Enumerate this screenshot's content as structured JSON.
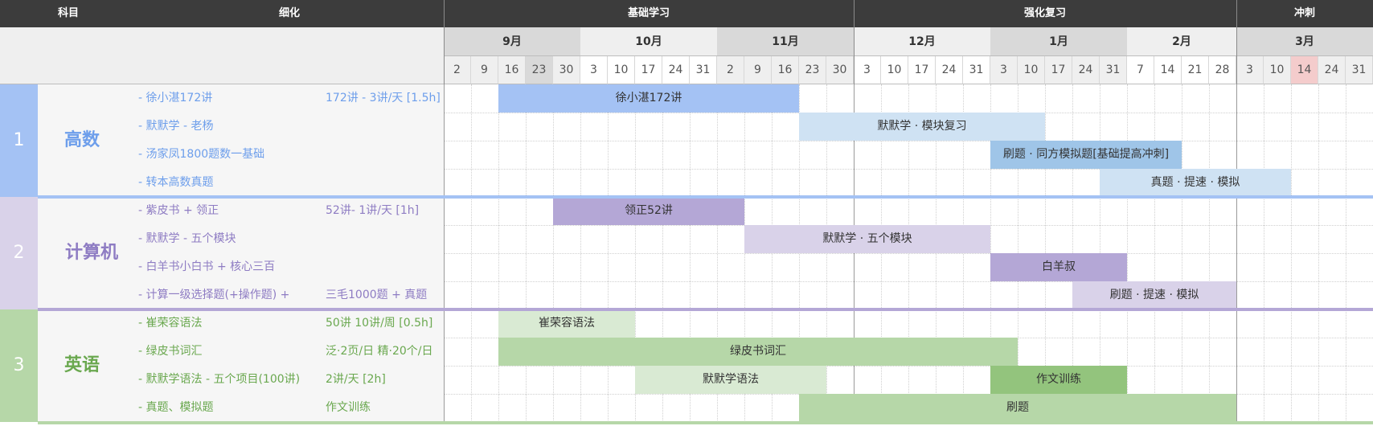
{
  "header": {
    "col_subject": "科目",
    "col_detail": "细化",
    "phases": [
      "基础学习",
      "强化复习",
      "冲刺"
    ]
  },
  "months": [
    "9月",
    "10月",
    "11月",
    "12月",
    "1月",
    "2月",
    "3月"
  ],
  "days": [
    "2",
    "9",
    "16",
    "23",
    "30",
    "3",
    "10",
    "17",
    "24",
    "31",
    "2",
    "9",
    "16",
    "23",
    "30",
    "3",
    "10",
    "17",
    "24",
    "31",
    "3",
    "10",
    "17",
    "24",
    "31",
    "7",
    "14",
    "21",
    "28",
    "3",
    "10",
    "14",
    "24",
    "31"
  ],
  "groups": [
    {
      "num": "1",
      "name": "高数",
      "rows": [
        {
          "item": "- 徐小湛172讲",
          "note": "172讲 - 3讲/天 [1.5h]",
          "bar": "徐小湛172讲"
        },
        {
          "item": "- 默默学 - 老杨",
          "note": "",
          "bar": "默默学 · 模块复习"
        },
        {
          "item": "- 汤家凤1800题数一基础",
          "note": "",
          "bar": "刷题 · 同方模拟题[基础提高冲刺]"
        },
        {
          "item": "- 转本高数真题",
          "note": "",
          "bar": "真题 · 提速 · 模拟"
        }
      ]
    },
    {
      "num": "2",
      "name": "计算机",
      "rows": [
        {
          "item": "- 紫皮书 + 领正",
          "note": "52讲- 1讲/天 [1h]",
          "bar": "领正52讲"
        },
        {
          "item": "- 默默学 - 五个模块",
          "note": "",
          "bar": "默默学 · 五个模块"
        },
        {
          "item": "- 白羊书小白书 + 核心三百",
          "note": "",
          "bar": "白羊叔"
        },
        {
          "item": "- 计算一级选择题(+操作题) +",
          "note": "三毛1000题 + 真题",
          "bar": "刷题 · 提速 · 模拟"
        }
      ]
    },
    {
      "num": "3",
      "name": "英语",
      "rows": [
        {
          "item": "- 崔荣容语法",
          "note": "50讲 10讲/周 [0.5h]",
          "bar": "崔荣容语法"
        },
        {
          "item": "- 绿皮书词汇",
          "note": "泛·2页/日 精·20个/日",
          "bar": "绿皮书词汇"
        },
        {
          "item": "- 默默学语法 - 五个项目(100讲)",
          "note": "2讲/天 [2h]",
          "bar": "默默学语法",
          "bar2": "作文训练"
        },
        {
          "item": "- 真题、模拟题",
          "note": "作文训练",
          "bar": "刷题"
        }
      ]
    }
  ],
  "colors": {
    "header_bg": "#3c3c3c",
    "group1_accent": "#a4c2f4",
    "group1_text": "#6d9eeb",
    "group2_accent": "#d9d2e9",
    "group2_text": "#8e7cc3",
    "group3_accent": "#b6d7a8",
    "group3_text": "#6aa84f",
    "highlight_day": "#f4cccc"
  }
}
